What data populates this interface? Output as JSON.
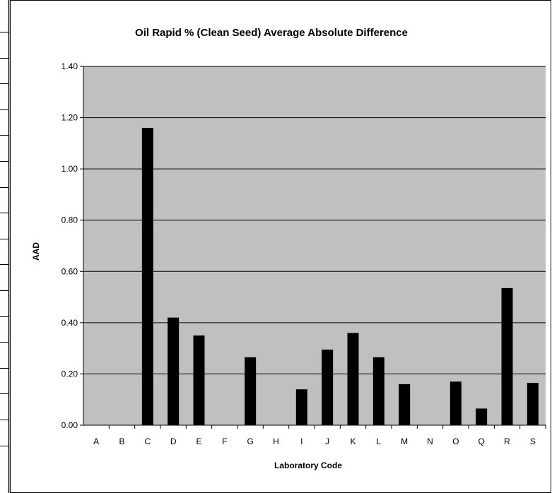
{
  "chart_data": {
    "type": "bar",
    "title": "Oil Rapid % (Clean Seed) Average Absolute Difference",
    "xlabel": "Laboratory Code",
    "ylabel": "AAD",
    "ylim": [
      0,
      1.4
    ],
    "yticks": [
      "0.00",
      "0.20",
      "0.40",
      "0.60",
      "0.80",
      "1.00",
      "1.20",
      "1.40"
    ],
    "grid": true,
    "legend": "none",
    "colors": {
      "plot_bg": "#c0c0c0",
      "bar": "#000000",
      "grid": "#000000"
    },
    "categories": [
      "A",
      "B",
      "C",
      "D",
      "E",
      "F",
      "G",
      "H",
      "I",
      "J",
      "K",
      "L",
      "M",
      "N",
      "O",
      "Q",
      "R",
      "S"
    ],
    "values": [
      null,
      null,
      1.16,
      0.42,
      0.35,
      null,
      0.265,
      null,
      0.14,
      0.295,
      0.36,
      0.265,
      0.16,
      null,
      0.17,
      0.065,
      0.535,
      0.165
    ]
  }
}
